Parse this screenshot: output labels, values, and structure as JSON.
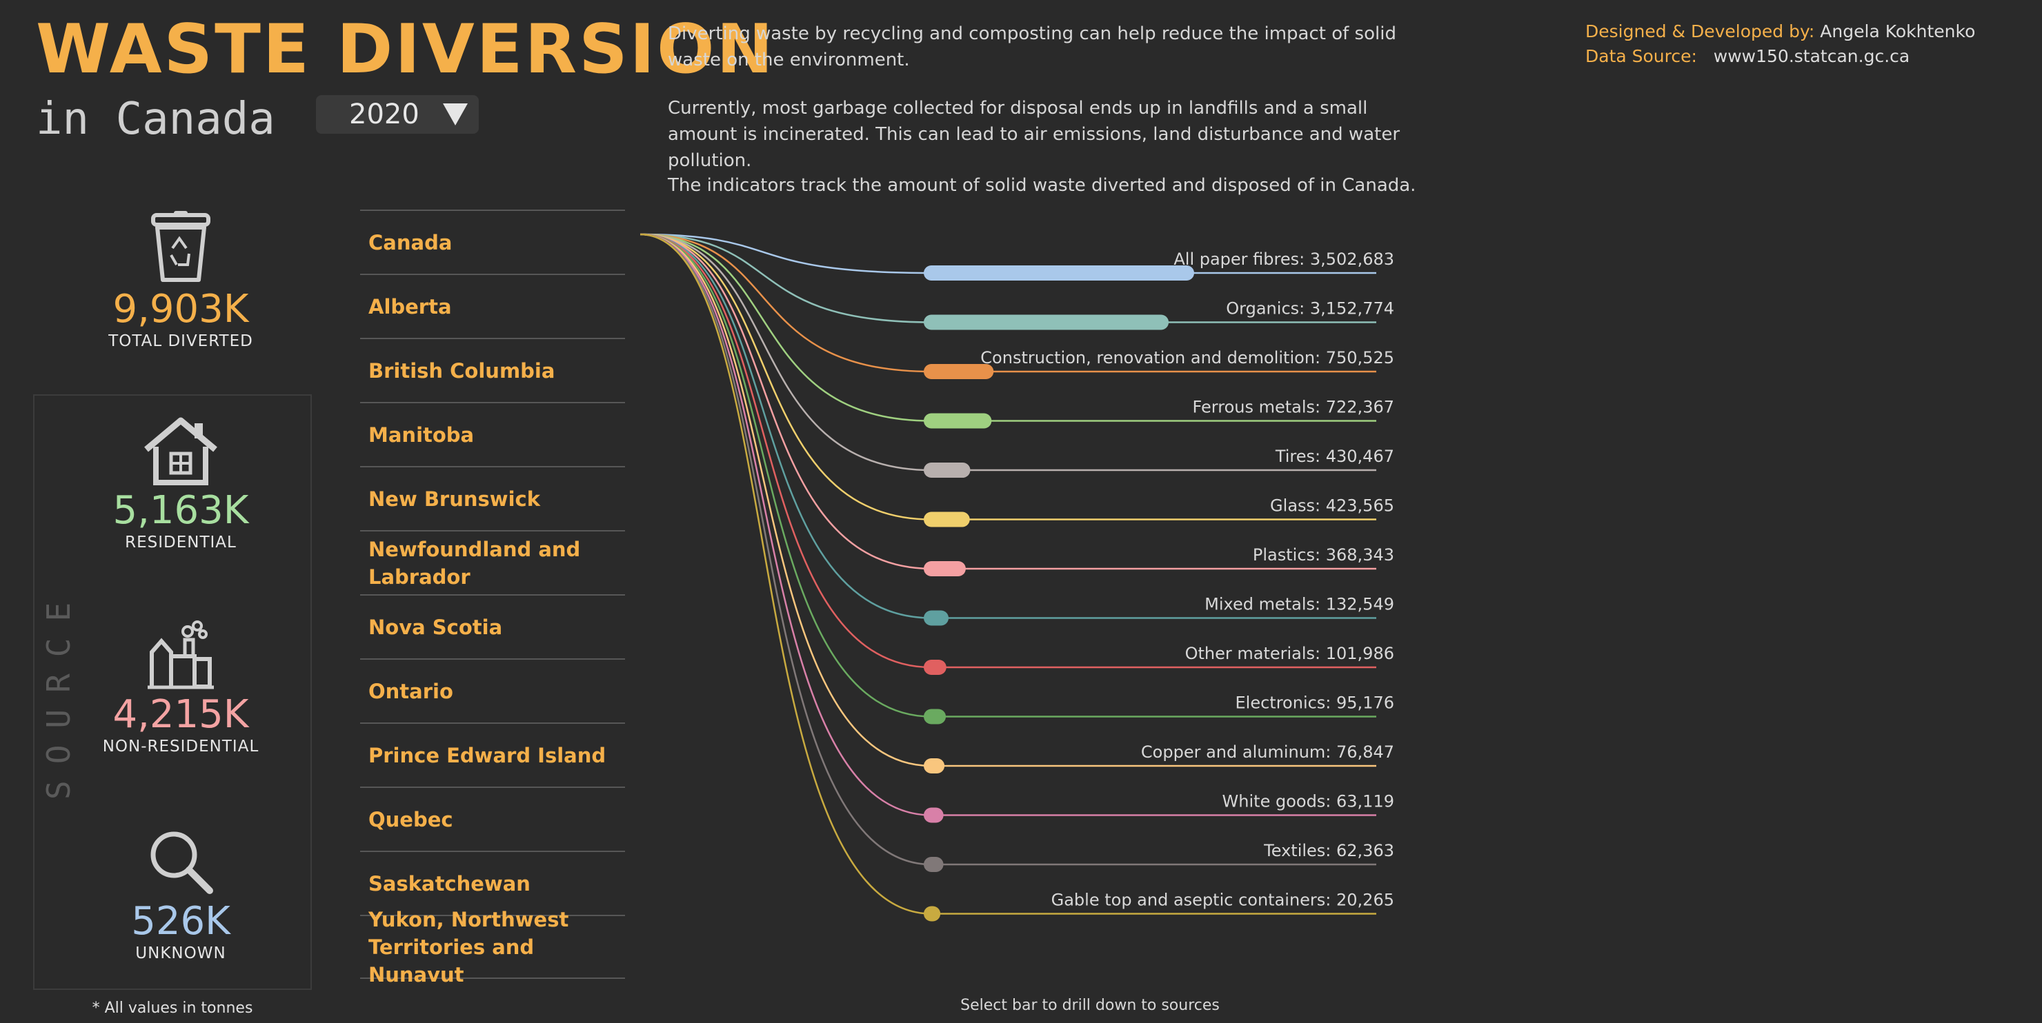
{
  "header": {
    "title": "WASTE DIVERSION",
    "subtitle": "in Canada",
    "year_select": {
      "value": "2020",
      "icon": "triangle-down-icon"
    }
  },
  "intro": {
    "p1": "Diverting waste by recycling and composting can help reduce the impact of solid waste on the environment.",
    "p2": "Currently, most garbage collected for disposal ends up in landfills and a small amount is incinerated. This can lead to air emissions, land disturbance and water pollution.",
    "p3": "The indicators track the amount of solid waste diverted and disposed of in Canada."
  },
  "credits": {
    "designed_label": "Designed & Developed by:",
    "designed_value": "Angela Kokhtenko",
    "source_label": "Data Source:",
    "source_value": "www150.statcan.gc.ca"
  },
  "stats": {
    "total": {
      "value": "9,903K",
      "label": "TOTAL DIVERTED",
      "color": "#f5b04a",
      "icon": "recycle-bin-icon"
    },
    "residential": {
      "value": "5,163K",
      "label": "RESIDENTIAL",
      "color": "#a8dfa0",
      "icon": "house-icon"
    },
    "non_residential": {
      "value": "4,215K",
      "label": "NON-RESIDENTIAL",
      "color": "#f4a3a3",
      "icon": "factory-icon"
    },
    "unknown": {
      "value": "526K",
      "label": "UNKNOWN",
      "color": "#a9c8ea",
      "icon": "magnifier-icon"
    },
    "source_label": "SOURCE",
    "footnote": "* All values in tonnes"
  },
  "regions": [
    "Canada",
    "Alberta",
    "British Columbia",
    "Manitoba",
    "New Brunswick",
    "Newfoundland and Labrador",
    "Nova Scotia",
    "Ontario",
    "Prince Edward Island",
    "Quebec",
    "Saskatchewan",
    "Yukon, Northwest Territories and Nunavut"
  ],
  "chart_data": {
    "type": "bar",
    "categories": [
      "All paper fibres",
      "Organics",
      "Construction, renovation and demolition",
      "Ferrous metals",
      "Tires",
      "Glass",
      "Plastics",
      "Mixed metals",
      "Other materials",
      "Electronics",
      "Copper and aluminum",
      "White goods",
      "Textiles",
      "Gable top and aseptic containers"
    ],
    "values": [
      3502683,
      3152774,
      750525,
      722367,
      430467,
      423565,
      368343,
      132549,
      101986,
      95176,
      76847,
      63119,
      62363,
      20265
    ],
    "value_labels": [
      "3,502,683",
      "3,152,774",
      "750,525",
      "722,367",
      "430,467",
      "423,565",
      "368,343",
      "132,549",
      "101,986",
      "95,176",
      "76,847",
      "63,119",
      "62,363",
      "20,265"
    ],
    "colors": [
      "#a9c8ea",
      "#8fc0b8",
      "#e8914a",
      "#9fd080",
      "#b8b0ae",
      "#f0cf6c",
      "#f4a0a2",
      "#5fa0a0",
      "#e06060",
      "#6aaa60",
      "#f9c67e",
      "#d880a8",
      "#807878",
      "#c8aa40"
    ],
    "hint": "Select bar to drill down to sources"
  }
}
